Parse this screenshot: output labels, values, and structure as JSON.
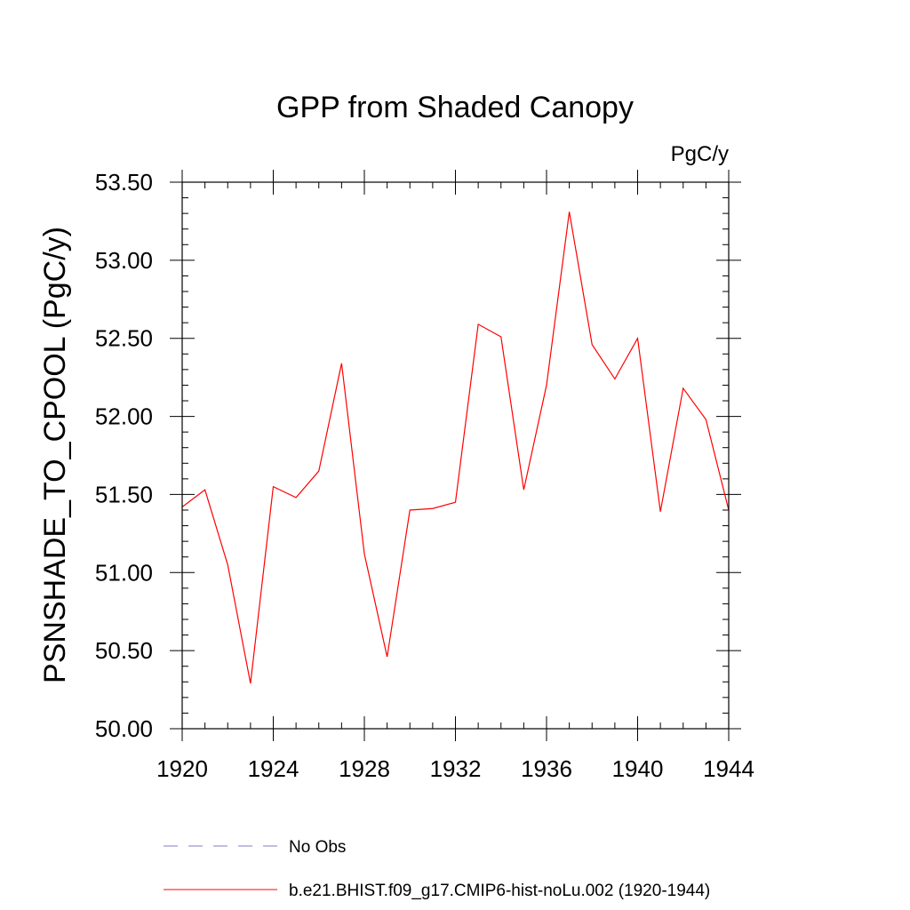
{
  "chart_data": {
    "type": "line",
    "title": "GPP from Shaded Canopy",
    "units_label": "PgC/y",
    "xlabel": "",
    "ylabel": "PSNSHADE_TO_CPOOL  (PgC/y)",
    "xlim": [
      1920,
      1944
    ],
    "ylim": [
      50.0,
      53.5
    ],
    "xticks": [
      "1920",
      "1924",
      "1928",
      "1932",
      "1936",
      "1940",
      "1944"
    ],
    "yticks": [
      "50.00",
      "50.50",
      "51.00",
      "51.50",
      "52.00",
      "52.50",
      "53.00",
      "53.50"
    ],
    "x": [
      1920,
      1921,
      1922,
      1923,
      1924,
      1925,
      1926,
      1927,
      1928,
      1929,
      1930,
      1931,
      1932,
      1933,
      1934,
      1935,
      1936,
      1937,
      1938,
      1939,
      1940,
      1941,
      1942,
      1943,
      1944
    ],
    "series": [
      {
        "name": "b.e21.BHIST.f09_g17.CMIP6-hist-noLu.002 (1920-1944)",
        "color": "#ff0000",
        "style": "solid",
        "values": [
          51.42,
          51.53,
          51.05,
          50.29,
          51.55,
          51.48,
          51.65,
          52.34,
          51.12,
          50.46,
          51.4,
          51.41,
          51.45,
          52.59,
          52.51,
          51.53,
          52.2,
          53.31,
          52.46,
          52.24,
          52.5,
          51.39,
          52.18,
          51.98,
          51.4
        ]
      }
    ],
    "legend": [
      {
        "label": "No Obs",
        "color": "#7f7fbf",
        "style": "dashed"
      },
      {
        "label": "b.e21.BHIST.f09_g17.CMIP6-hist-noLu.002 (1920-1944)",
        "color": "#ff0000",
        "style": "solid"
      }
    ],
    "legend_placement": "bottom",
    "grid": false
  }
}
